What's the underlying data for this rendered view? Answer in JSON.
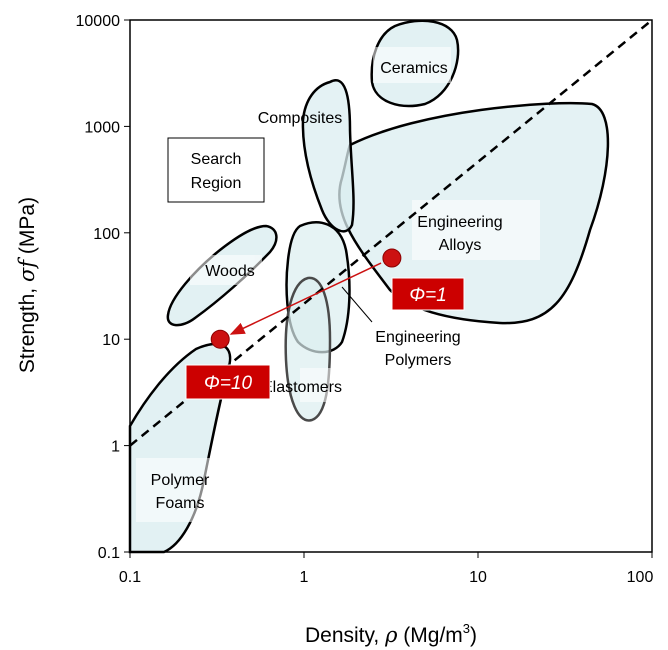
{
  "chart_data": {
    "type": "scatter",
    "title": "",
    "xlabel": {
      "prefix": "Density, ",
      "symbol": "ρ",
      "unit_open": " (Mg/m",
      "unit_sup": "3",
      "unit_close": ")"
    },
    "ylabel": {
      "prefix": "Strength, ",
      "symbol": "σf",
      "unit": " (MPa)"
    },
    "xscale": "log",
    "yscale": "log",
    "xlim": [
      0.1,
      100
    ],
    "ylim": [
      0.1,
      10000
    ],
    "xticks": [
      "0.1",
      "1",
      "10",
      "100"
    ],
    "yticks": [
      "0.1",
      "1",
      "10",
      "100",
      "1000",
      "10000"
    ],
    "grid": false,
    "reference_line": {
      "style": "dashed",
      "from": [
        0.1,
        1
      ],
      "to": [
        100,
        10000
      ]
    },
    "points": [
      {
        "label": "Φ=1",
        "x": 3.2,
        "y": 58
      },
      {
        "label": "Φ=10",
        "x": 0.33,
        "y": 10
      }
    ],
    "arrow": {
      "from": [
        3.2,
        58
      ],
      "to": [
        0.33,
        10
      ],
      "color": "#cc1111"
    },
    "regions": [
      {
        "label": "Ceramics"
      },
      {
        "label": "Composites"
      },
      {
        "label_lines": [
          "Engineering",
          "Alloys"
        ]
      },
      {
        "label": "Woods"
      },
      {
        "label": "Elastomers"
      },
      {
        "label_lines": [
          "Engineering",
          "Polymers"
        ]
      },
      {
        "label_lines": [
          "Polymer",
          "Foams"
        ]
      },
      {
        "label_lines": [
          "Search",
          "Region"
        ]
      }
    ],
    "colors": {
      "region_fill": "#dbeef0",
      "region_stroke": "#000000",
      "point": "#cc1111",
      "phi_box": "#cc0000"
    }
  }
}
